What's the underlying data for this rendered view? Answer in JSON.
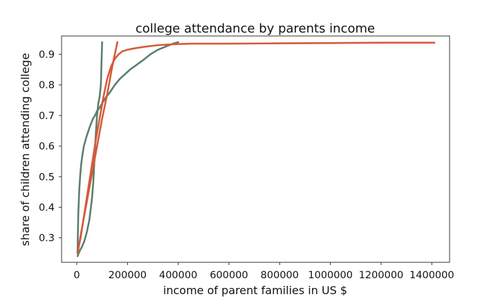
{
  "chart_data": {
    "type": "line",
    "title": "college attendance by parents income",
    "xlabel": "income of parent families in US $",
    "ylabel": "share of children attending college",
    "xlim": [
      -60000,
      1470000
    ],
    "ylim": [
      0.22,
      0.96
    ],
    "xticks": [
      0,
      200000,
      400000,
      600000,
      800000,
      1000000,
      1200000,
      1400000
    ],
    "yticks": [
      0.3,
      0.4,
      0.5,
      0.6,
      0.7,
      0.8,
      0.9
    ],
    "grid": false,
    "legend": "none",
    "series": [
      {
        "color": "#5b7f6e",
        "x": [
          3000,
          6000,
          10000,
          14000,
          18000,
          23000,
          28000,
          33000,
          38000,
          44000,
          50000,
          57000,
          64000,
          72000,
          80000,
          90000,
          100000,
          115000,
          130000,
          150000,
          170000,
          190000,
          210000,
          235000,
          260000,
          290000,
          320000,
          350000,
          380000,
          400000
        ],
        "y": [
          0.25,
          0.38,
          0.46,
          0.51,
          0.545,
          0.575,
          0.6,
          0.615,
          0.63,
          0.645,
          0.66,
          0.675,
          0.69,
          0.7,
          0.715,
          0.725,
          0.74,
          0.76,
          0.775,
          0.8,
          0.82,
          0.835,
          0.85,
          0.865,
          0.88,
          0.9,
          0.915,
          0.925,
          0.935,
          0.94
        ]
      },
      {
        "color": "#5b7f6e",
        "x": [
          3000,
          10000,
          20000,
          30000,
          40000,
          50000,
          60000,
          65000,
          70000,
          75000,
          80000,
          85000,
          90000,
          95000,
          100000
        ],
        "y": [
          0.24,
          0.255,
          0.27,
          0.29,
          0.32,
          0.36,
          0.43,
          0.48,
          0.56,
          0.64,
          0.7,
          0.74,
          0.76,
          0.8,
          0.94
        ]
      },
      {
        "color": "#d65a3a",
        "x": [
          3000,
          20000,
          40000,
          60000,
          80000,
          100000,
          120000,
          140000,
          160000
        ],
        "y": [
          0.25,
          0.33,
          0.42,
          0.51,
          0.6,
          0.69,
          0.77,
          0.86,
          0.94
        ]
      },
      {
        "color": "#d65a3a",
        "x": [
          3000,
          15000,
          30000,
          45000,
          60000,
          75000,
          90000,
          105000,
          120000,
          135000,
          150000,
          165000,
          180000,
          200000,
          230000,
          270000,
          320000,
          380000,
          450000,
          600000,
          800000,
          1000000,
          1200000,
          1410000
        ],
        "y": [
          0.25,
          0.3,
          0.38,
          0.46,
          0.54,
          0.62,
          0.69,
          0.76,
          0.82,
          0.86,
          0.885,
          0.9,
          0.91,
          0.915,
          0.92,
          0.925,
          0.93,
          0.933,
          0.935,
          0.935,
          0.936,
          0.937,
          0.938,
          0.938
        ]
      }
    ]
  }
}
